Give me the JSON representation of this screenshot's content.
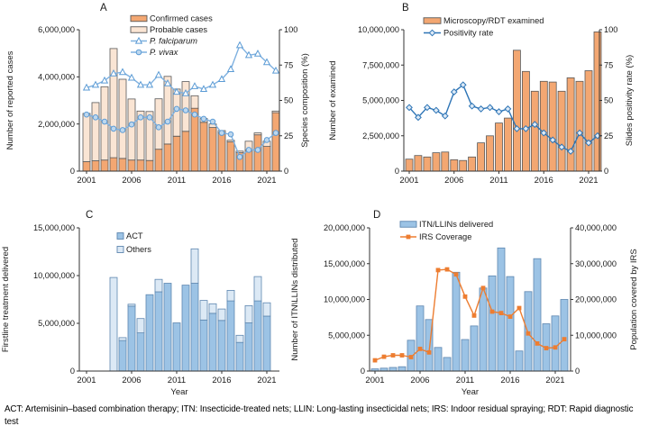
{
  "footer": {
    "text": "ACT: Artemisinin–based combination therapy; ITN: Insecticide-treated nets; LLIN: Long-lasting insecticidal nets; IRS: Indoor residual spraying; RDT: Rapid diagnostic test"
  },
  "chart_data": [
    {
      "id": "A",
      "panel_label": "A",
      "type": "bar",
      "subtype": "stacked-bar-with-lines",
      "years": [
        2001,
        2002,
        2003,
        2004,
        2005,
        2006,
        2007,
        2008,
        2009,
        2010,
        2011,
        2012,
        2013,
        2014,
        2015,
        2016,
        2017,
        2018,
        2019,
        2020,
        2021,
        2022
      ],
      "x_ticks": [
        2001,
        2006,
        2011,
        2016,
        2021
      ],
      "x_label": "",
      "left_axis": {
        "label": "Number of reported cases",
        "min": 0,
        "max": 6000000,
        "ticks": [
          {
            "v": 0,
            "t": "0"
          },
          {
            "v": 2000000,
            "t": "2,000,000"
          },
          {
            "v": 4000000,
            "t": "4,000,000"
          },
          {
            "v": 6000000,
            "t": "6,000,000"
          }
        ]
      },
      "right_axis": {
        "label": "Species composition (%)",
        "min": 0,
        "max": 100,
        "ticks": [
          {
            "v": 0,
            "t": "0"
          },
          {
            "v": 25,
            "t": "25"
          },
          {
            "v": 50,
            "t": "50"
          },
          {
            "v": 75,
            "t": "75"
          },
          {
            "v": 100,
            "t": "100"
          }
        ]
      },
      "bar_series": [
        {
          "name": "Confirmed cases",
          "fill": "#F3A772",
          "stroke": "#595959",
          "values": [
            400000,
            440000,
            470000,
            570000,
            540000,
            470000,
            470000,
            450000,
            930000,
            1150000,
            1480000,
            1690000,
            2670000,
            2070000,
            1850000,
            1620000,
            1240000,
            780000,
            890000,
            1540000,
            1050000,
            2480000
          ]
        },
        {
          "name": "Probable cases",
          "fill": "#FAE5D4",
          "stroke": "#595959",
          "values": [
            2050000,
            2470000,
            3110000,
            4630000,
            3360000,
            2590000,
            2080000,
            2080000,
            2140000,
            2870000,
            2000000,
            2110000,
            530000,
            160000,
            150000,
            100000,
            70000,
            70000,
            380000,
            80000,
            220000,
            70000
          ]
        }
      ],
      "line_series": [
        {
          "name": "P. falciparum",
          "color": "#7FB1E0",
          "marker": "triangle",
          "mfill": "#FFFFFF",
          "mstroke": "#5B9BD5",
          "values": [
            59,
            61,
            64,
            69,
            70,
            66,
            61,
            61,
            68,
            62,
            56,
            55,
            60,
            58,
            61,
            65,
            72,
            89,
            82,
            83,
            77,
            71
          ]
        },
        {
          "name": "P. vivax",
          "color": "#7FB1E0",
          "marker": "circle",
          "mfill": "#BDD7EE",
          "mstroke": "#5B9BD5",
          "values": [
            40,
            38,
            35,
            30,
            29,
            33,
            38,
            38,
            31,
            35,
            44,
            43,
            40,
            37,
            35,
            27,
            26,
            10,
            15,
            15,
            22,
            27
          ]
        }
      ],
      "legend": [
        {
          "type": "bar",
          "label": "Confirmed cases",
          "fill": "#F3A772",
          "stroke": "#595959"
        },
        {
          "type": "bar",
          "label": "Probable cases",
          "fill": "#FAE5D4",
          "stroke": "#595959"
        },
        {
          "type": "line",
          "label": "P. falciparum",
          "italic": true,
          "color": "#7FB1E0",
          "marker": "triangle",
          "mfill": "#FFFFFF",
          "mstroke": "#5B9BD5"
        },
        {
          "type": "line",
          "label": "P. vivax",
          "italic": true,
          "color": "#7FB1E0",
          "marker": "circle",
          "mfill": "#BDD7EE",
          "mstroke": "#5B9BD5"
        }
      ]
    },
    {
      "id": "B",
      "panel_label": "B",
      "type": "bar",
      "subtype": "bar-with-line",
      "years": [
        2001,
        2002,
        2003,
        2004,
        2005,
        2006,
        2007,
        2008,
        2009,
        2010,
        2011,
        2012,
        2013,
        2014,
        2015,
        2016,
        2017,
        2018,
        2019,
        2020,
        2021,
        2022
      ],
      "x_ticks": [
        2001,
        2006,
        2011,
        2016,
        2021
      ],
      "x_label": "",
      "left_axis": {
        "label": "Number of examined",
        "min": 0,
        "max": 10000000,
        "ticks": [
          {
            "v": 0,
            "t": "0"
          },
          {
            "v": 2500000,
            "t": "2,500,000"
          },
          {
            "v": 5000000,
            "t": "5,000,000"
          },
          {
            "v": 7500000,
            "t": "7,500,000"
          },
          {
            "v": 10000000,
            "t": "10,000,000"
          }
        ]
      },
      "right_axis": {
        "label": "Slides positivity rate (%)",
        "min": 0,
        "max": 100,
        "ticks": [
          {
            "v": 0,
            "t": "0"
          },
          {
            "v": 25,
            "t": "25"
          },
          {
            "v": 50,
            "t": "50"
          },
          {
            "v": 75,
            "t": "75"
          },
          {
            "v": 100,
            "t": "100"
          }
        ]
      },
      "bar_series": [
        {
          "name": "Microscopy/RDT examined",
          "fill": "#F3A772",
          "stroke": "#595959",
          "values": [
            850000,
            1100000,
            1000000,
            1300000,
            1350000,
            800000,
            750000,
            1000000,
            2000000,
            2500000,
            3400000,
            3750000,
            8550000,
            7050000,
            5650000,
            6350000,
            6300000,
            5650000,
            6600000,
            6350000,
            7100000,
            9850000
          ]
        }
      ],
      "line_series": [
        {
          "name": "Positivity rate",
          "color": "#2E75B6",
          "marker": "diamond",
          "mfill": "#DEEAF6",
          "mstroke": "#2E75B6",
          "values": [
            45,
            38,
            45,
            43,
            39,
            56,
            61,
            46,
            44,
            45,
            42,
            44,
            30,
            30,
            33,
            27,
            22,
            17,
            14,
            27,
            20,
            25
          ]
        }
      ],
      "legend": [
        {
          "type": "bar",
          "label": "Microscopy/RDT examined",
          "fill": "#F3A772",
          "stroke": "#595959"
        },
        {
          "type": "line",
          "label": "Positivity rate",
          "color": "#2E75B6",
          "marker": "diamond",
          "mfill": "#DEEAF6",
          "mstroke": "#2E75B6"
        }
      ]
    },
    {
      "id": "C",
      "panel_label": "C",
      "type": "bar",
      "subtype": "stacked-bar",
      "years": [
        2004,
        2005,
        2006,
        2007,
        2008,
        2009,
        2010,
        2011,
        2012,
        2013,
        2014,
        2015,
        2016,
        2017,
        2018,
        2019,
        2020,
        2021
      ],
      "x_ticks": [
        2001,
        2006,
        2011,
        2016,
        2021
      ],
      "x_label": "Year",
      "left_axis": {
        "label": "Firstline treatment delivered",
        "min": 0,
        "max": 15000000,
        "ticks": [
          {
            "v": 0,
            "t": "0"
          },
          {
            "v": 5000000,
            "t": "5,000,000"
          },
          {
            "v": 10000000,
            "t": "10,000,000"
          },
          {
            "v": 15000000,
            "t": "15,000,000"
          }
        ]
      },
      "bar_series": [
        {
          "name": "ACT",
          "fill": "#9CC3E5",
          "stroke": "#5E87B0",
          "values": [
            0,
            3200000,
            6800000,
            4000000,
            8000000,
            8300000,
            9200000,
            5050000,
            9000000,
            9200000,
            5350000,
            6050000,
            5300000,
            7350000,
            3000000,
            5050000,
            7350000,
            5750000
          ]
        },
        {
          "name": "Others",
          "fill": "#DCE9F5",
          "stroke": "#5E87B0",
          "values": [
            9800000,
            300000,
            200000,
            1500000,
            0,
            1300000,
            0,
            0,
            0,
            3600000,
            2050000,
            1000000,
            1200000,
            1100000,
            750000,
            1800000,
            2550000,
            1400000
          ]
        }
      ],
      "legend": [
        {
          "type": "bar",
          "label": "ACT",
          "fill": "#9CC3E5",
          "stroke": "#5E87B0"
        },
        {
          "type": "bar",
          "label": "Others",
          "fill": "#DCE9F5",
          "stroke": "#5E87B0"
        }
      ]
    },
    {
      "id": "D",
      "panel_label": "D",
      "type": "bar",
      "subtype": "bar-with-line",
      "years": [
        2001,
        2002,
        2003,
        2004,
        2005,
        2006,
        2007,
        2008,
        2009,
        2010,
        2011,
        2012,
        2013,
        2014,
        2015,
        2016,
        2017,
        2018,
        2019,
        2020,
        2021,
        2022
      ],
      "x_ticks": [
        2001,
        2006,
        2011,
        2016,
        2021
      ],
      "x_label": "Year",
      "left_axis": {
        "label": "Number of ITN\\LLINs distributed",
        "min": 0,
        "max": 20000000,
        "ticks": [
          {
            "v": 0,
            "t": "0"
          },
          {
            "v": 5000000,
            "t": "5,000,000"
          },
          {
            "v": 10000000,
            "t": "10,000,000"
          },
          {
            "v": 15000000,
            "t": "15,000,000"
          },
          {
            "v": 20000000,
            "t": "20,000,000"
          }
        ]
      },
      "right_axis": {
        "label": "Population covered by IRS",
        "min": 0,
        "max": 40000000,
        "ticks": [
          {
            "v": 0,
            "t": "0"
          },
          {
            "v": 10000000,
            "t": "10,000,000"
          },
          {
            "v": 20000000,
            "t": "20,000,000"
          },
          {
            "v": 30000000,
            "t": "30,000,000"
          },
          {
            "v": 40000000,
            "t": "40,000,000"
          }
        ]
      },
      "bar_series": [
        {
          "name": "ITN/LLINs delivered",
          "fill": "#9CC3E5",
          "stroke": "#5E87B0",
          "values": [
            300000,
            400000,
            500000,
            600000,
            4300000,
            9100000,
            7200000,
            3300000,
            1900000,
            13800000,
            4400000,
            6300000,
            11600000,
            13300000,
            17200000,
            13200000,
            2800000,
            11100000,
            15700000,
            6600000,
            7700000,
            10000000
          ]
        }
      ],
      "line_series": [
        {
          "name": "IRS Coverage",
          "color": "#ED7D31",
          "marker": "square",
          "mfill": "#ED7D31",
          "mstroke": "#ED7D31",
          "values": [
            3000000,
            4000000,
            4400000,
            4400000,
            3900000,
            6200000,
            5200000,
            28200000,
            28400000,
            27000000,
            20800000,
            15500000,
            23200000,
            16600000,
            16200000,
            15200000,
            17600000,
            10500000,
            7700000,
            6400000,
            6600000,
            8900000
          ]
        }
      ],
      "legend": [
        {
          "type": "bar",
          "label": "ITN/LLINs delivered",
          "fill": "#9CC3E5",
          "stroke": "#5E87B0"
        },
        {
          "type": "line",
          "label": "IRS Coverage",
          "color": "#ED7D31",
          "marker": "square",
          "mfill": "#ED7D31",
          "mstroke": "#ED7D31"
        }
      ]
    }
  ]
}
